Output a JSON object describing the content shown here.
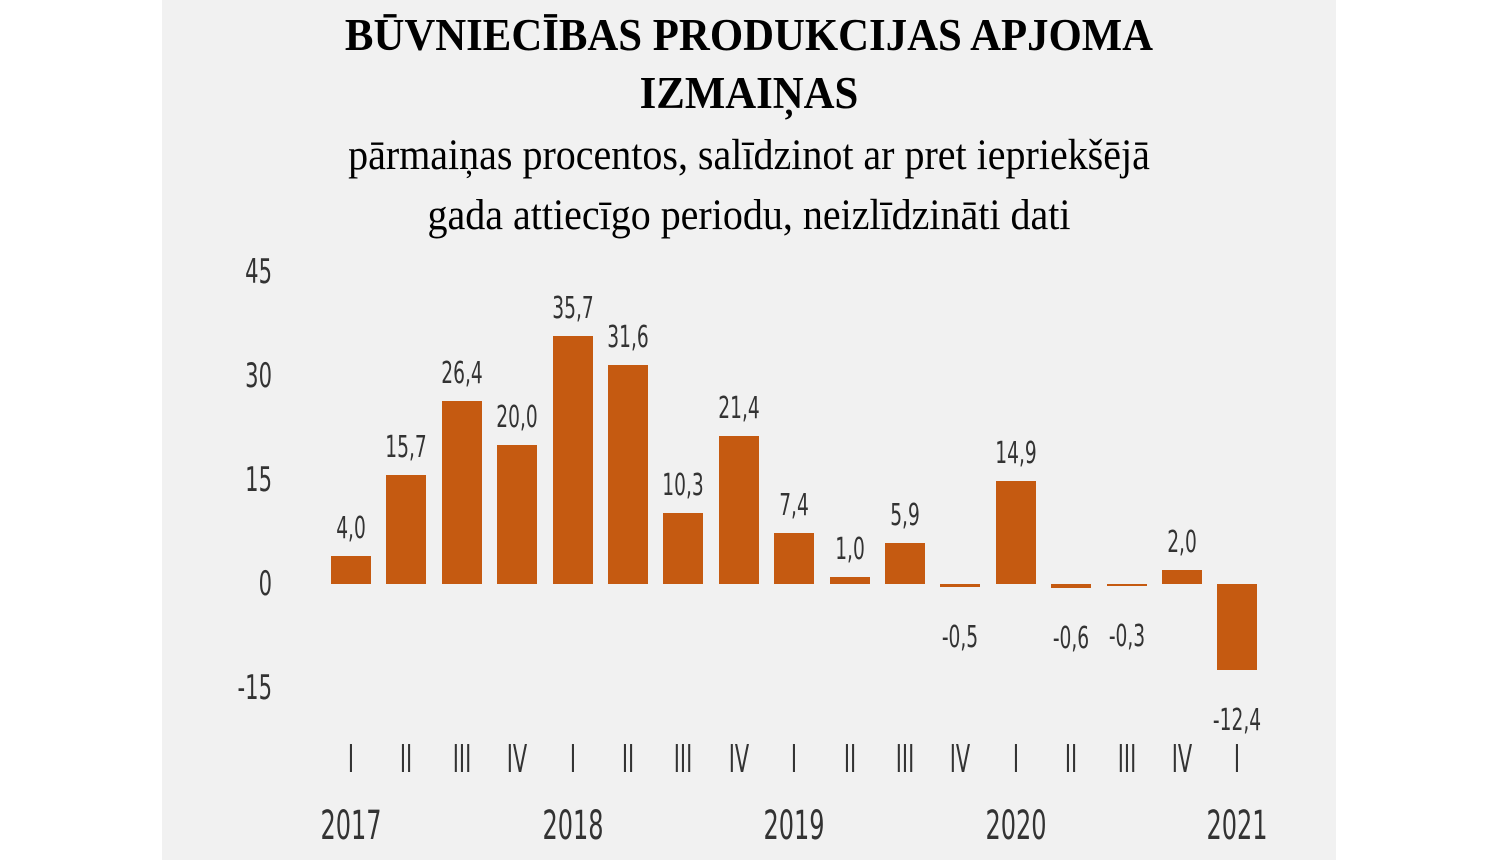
{
  "header": {
    "title_line1": "BŪVNIECĪBAS PRODUKCIJAS APJOMA",
    "title_line2": "IZMAIŅAS",
    "subtitle_line1": "pārmaiņas procentos, salīdzinot ar pret iepriekšējā",
    "subtitle_line2": "gada attiecīgo periodu, neizlīdzināti dati"
  },
  "colors": {
    "bar": "#c55a11",
    "panel_background": "#f1f1f1",
    "text": "#333333"
  },
  "chart_data": {
    "type": "bar",
    "title": "BŪVNIECĪBAS PRODUKCIJAS APJOMA IZMAIŅAS",
    "subtitle": "pārmaiņas procentos, salīdzinot ar pret iepriekšējā gada attiecīgo periodu, neizlīdzināti dati",
    "xlabel": "",
    "ylabel": "",
    "ylim": [
      -15,
      45
    ],
    "yticks": [
      "45",
      "30",
      "15",
      "0",
      "-15"
    ],
    "grid": false,
    "legend": null,
    "categories": [
      "2017 I",
      "2017 II",
      "2017 III",
      "2017 IV",
      "2018 I",
      "2018 II",
      "2018 III",
      "2018 IV",
      "2019 I",
      "2019 II",
      "2019 III",
      "2019 IV",
      "2020 I",
      "2020 II",
      "2020 III",
      "2020 IV",
      "2021 I"
    ],
    "quarter_labels": [
      "I",
      "II",
      "III",
      "IV",
      "I",
      "II",
      "III",
      "IV",
      "I",
      "II",
      "III",
      "IV",
      "I",
      "II",
      "III",
      "IV",
      "I"
    ],
    "year_labels": [
      "2017",
      "2018",
      "2019",
      "2020",
      "2021"
    ],
    "values": [
      4.0,
      15.7,
      26.4,
      20.0,
      35.7,
      31.6,
      10.3,
      21.4,
      7.4,
      1.0,
      5.9,
      -0.5,
      14.9,
      -0.6,
      -0.3,
      2.0,
      -12.4
    ],
    "value_labels": [
      "4,0",
      "15,7",
      "26,4",
      "20,0",
      "35,7",
      "31,6",
      "10,3",
      "21,4",
      "7,4",
      "1,0",
      "5,9",
      "-0,5",
      "14,9",
      "-0,6",
      "-0,3",
      "2,0",
      "-12,4"
    ]
  }
}
